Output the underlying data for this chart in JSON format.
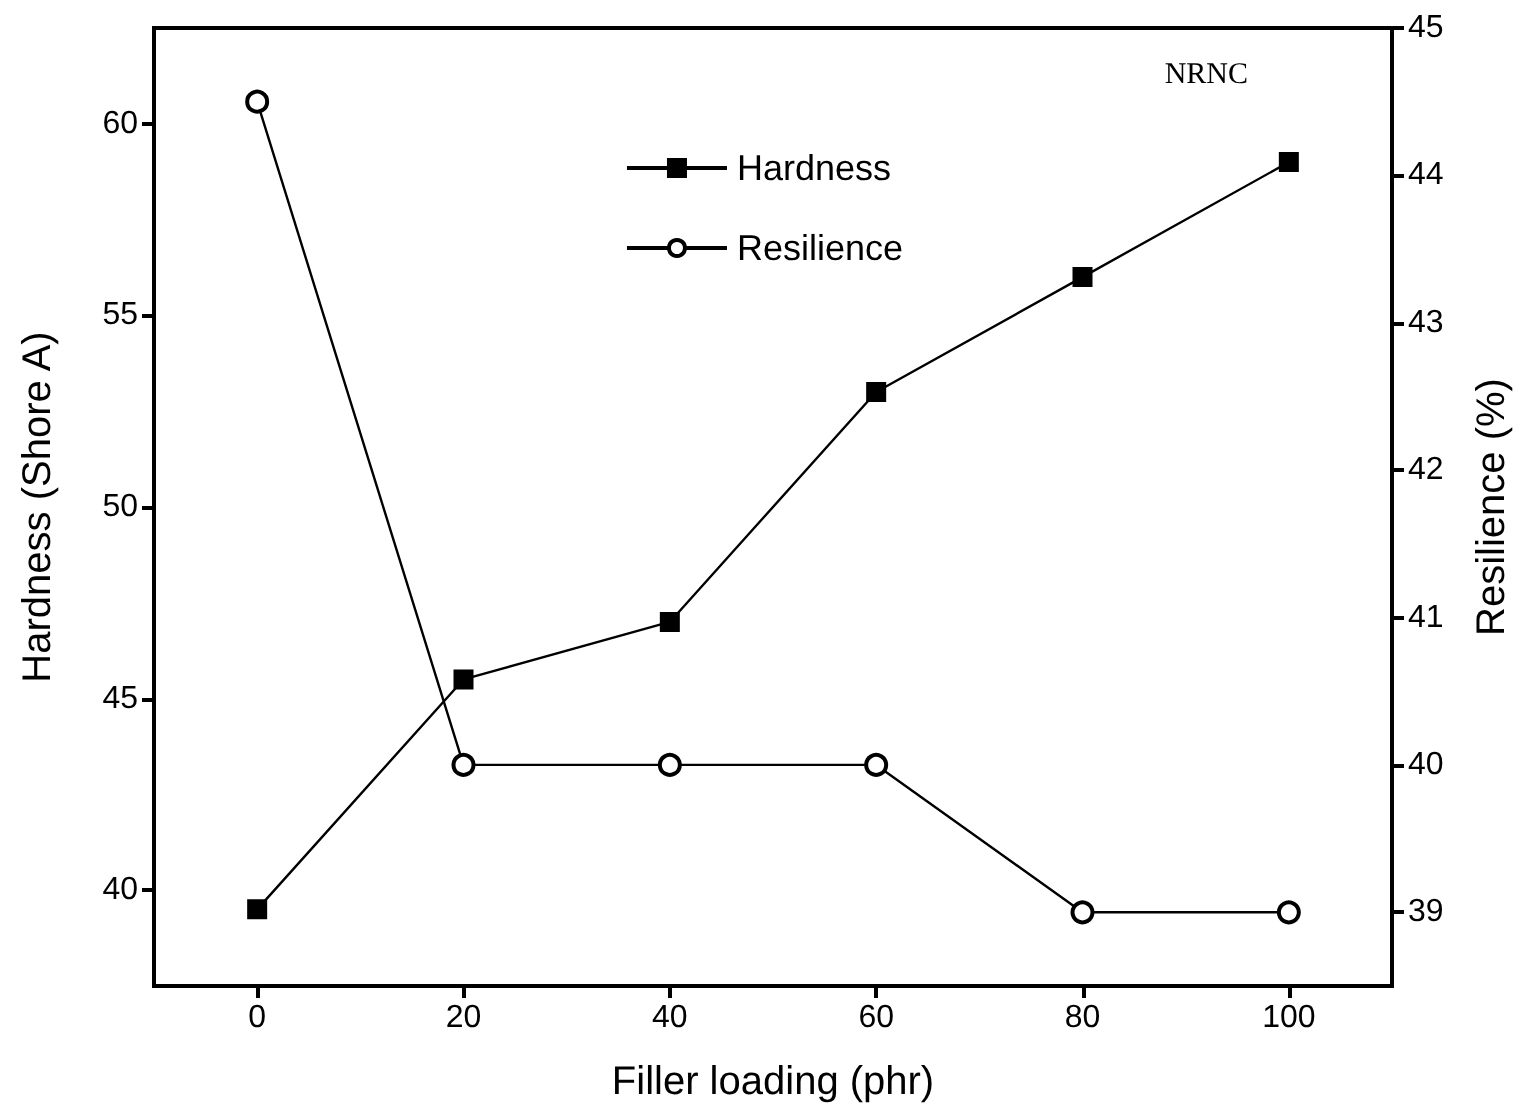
{
  "chart_data": {
    "type": "line",
    "xlabel": "Filler loading (phr)",
    "ylabel": "Hardness (Shore A)",
    "y2label": "Resilience (%)",
    "x": [
      0,
      20,
      40,
      60,
      80,
      100
    ],
    "series": [
      {
        "name": "Hardness",
        "color": "#000000",
        "marker": "square",
        "values": [
          39.5,
          45.5,
          47.0,
          53.0,
          56.0,
          59.0
        ]
      },
      {
        "name": "Resilience",
        "color": "#000000",
        "marker": "circle",
        "axis": "y2",
        "values": [
          44.5,
          40.0,
          40.0,
          40.0,
          39.0,
          39.0
        ]
      }
    ],
    "xlim": [
      -10,
      110
    ],
    "xticks": [
      0,
      20,
      40,
      60,
      80,
      100
    ],
    "ylim": [
      37.5,
      62.5
    ],
    "yticks": [
      40,
      45,
      50,
      55,
      60
    ],
    "y2lim": [
      38.5,
      45
    ],
    "y2ticks": [
      39,
      40,
      41,
      42,
      43,
      44,
      45
    ],
    "annotations": [
      "NRNC"
    ],
    "legend": "top",
    "grid": false,
    "line_style": "solid"
  }
}
